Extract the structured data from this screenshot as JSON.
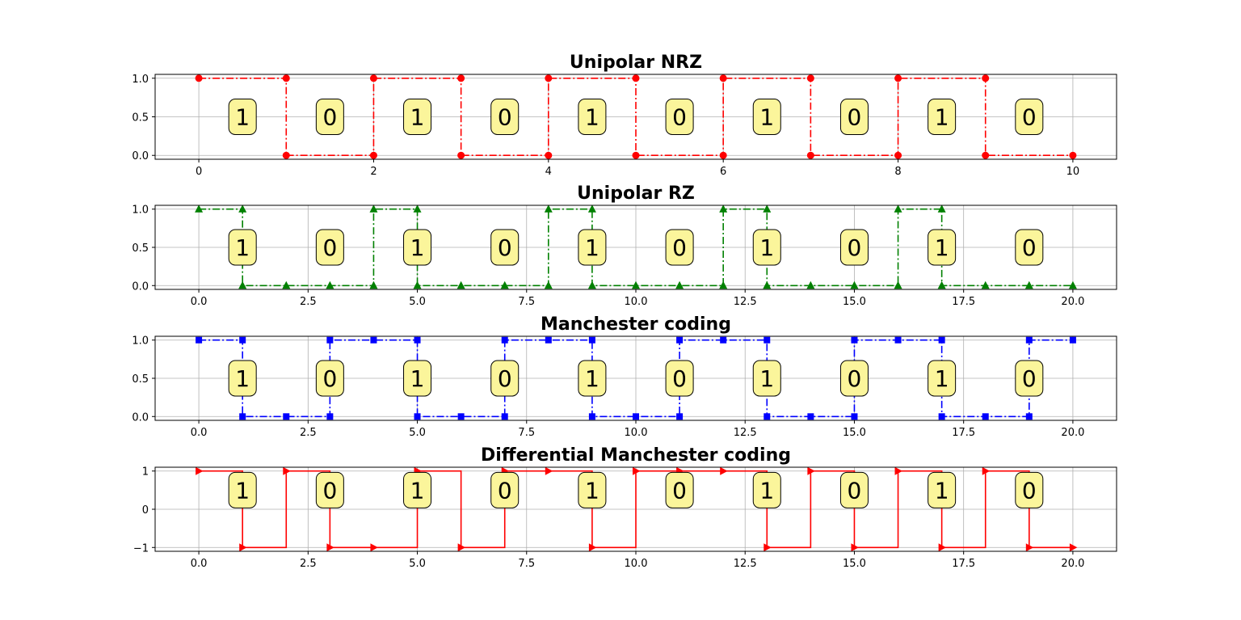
{
  "chart_data": [
    {
      "type": "line",
      "title": "Unipolar NRZ",
      "xlabel": "",
      "ylabel": "",
      "xlim": [
        -0.5,
        10.5
      ],
      "ylim": [
        -0.05,
        1.05
      ],
      "xticks": [
        0,
        2,
        4,
        6,
        8,
        10
      ],
      "xtick_labels": [
        "0",
        "2",
        "4",
        "6",
        "8",
        "10"
      ],
      "yticks": [
        0,
        0.5,
        1
      ],
      "ytick_labels": [
        "0.0",
        "0.5",
        "1.0"
      ],
      "grid": true,
      "series": [
        {
          "color": "#ff0000",
          "marker": "circle",
          "line_style": "dashdot",
          "step": false,
          "x": [
            0,
            1,
            1,
            2,
            2,
            3,
            3,
            4,
            4,
            5,
            5,
            6,
            6,
            7,
            7,
            8,
            8,
            9,
            9,
            10
          ],
          "y": [
            1,
            1,
            0,
            0,
            1,
            1,
            0,
            0,
            1,
            1,
            0,
            0,
            1,
            1,
            0,
            0,
            1,
            1,
            0,
            0
          ]
        }
      ],
      "bit_labels": {
        "x": [
          0.5,
          1.5,
          2.5,
          3.5,
          4.5,
          5.5,
          6.5,
          7.5,
          8.5,
          9.5
        ],
        "y": 0.5,
        "text": [
          "1",
          "0",
          "1",
          "0",
          "1",
          "0",
          "1",
          "0",
          "1",
          "0"
        ]
      }
    },
    {
      "type": "line",
      "title": "Unipolar RZ",
      "xlabel": "",
      "ylabel": "",
      "xlim": [
        -1,
        21
      ],
      "ylim": [
        -0.05,
        1.05
      ],
      "xticks": [
        0,
        2.5,
        5,
        7.5,
        10,
        12.5,
        15,
        17.5,
        20
      ],
      "xtick_labels": [
        "0.0",
        "2.5",
        "5.0",
        "7.5",
        "10.0",
        "12.5",
        "15.0",
        "17.5",
        "20.0"
      ],
      "yticks": [
        0,
        0.5,
        1
      ],
      "ytick_labels": [
        "0.0",
        "0.5",
        "1.0"
      ],
      "grid": true,
      "series": [
        {
          "color": "#008000",
          "marker": "triangle-up",
          "line_style": "dashdot",
          "step": false,
          "x": [
            0,
            1,
            1,
            2,
            3,
            4,
            4,
            5,
            5,
            6,
            7,
            8,
            8,
            9,
            9,
            10,
            11,
            12,
            12,
            13,
            13,
            14,
            15,
            16,
            16,
            17,
            17,
            18,
            19,
            20
          ],
          "y": [
            1,
            1,
            0,
            0,
            0,
            0,
            1,
            1,
            0,
            0,
            0,
            0,
            1,
            1,
            0,
            0,
            0,
            0,
            1,
            1,
            0,
            0,
            0,
            0,
            1,
            1,
            0,
            0,
            0,
            0
          ]
        }
      ],
      "bit_labels": {
        "x": [
          1,
          3,
          5,
          7,
          9,
          11,
          13,
          15,
          17,
          19
        ],
        "y": 0.5,
        "text": [
          "1",
          "0",
          "1",
          "0",
          "1",
          "0",
          "1",
          "0",
          "1",
          "0"
        ]
      }
    },
    {
      "type": "line",
      "title": "Manchester coding",
      "xlabel": "",
      "ylabel": "",
      "xlim": [
        -1,
        21
      ],
      "ylim": [
        -0.05,
        1.05
      ],
      "xticks": [
        0,
        2.5,
        5,
        7.5,
        10,
        12.5,
        15,
        17.5,
        20
      ],
      "xtick_labels": [
        "0.0",
        "2.5",
        "5.0",
        "7.5",
        "10.0",
        "12.5",
        "15.0",
        "17.5",
        "20.0"
      ],
      "yticks": [
        0,
        0.5,
        1
      ],
      "ytick_labels": [
        "0.0",
        "0.5",
        "1.0"
      ],
      "grid": true,
      "series": [
        {
          "color": "#0000ff",
          "marker": "square",
          "line_style": "dashdot",
          "step": false,
          "x": [
            0,
            1,
            1,
            2,
            3,
            3,
            4,
            5,
            5,
            6,
            7,
            7,
            8,
            9,
            9,
            10,
            11,
            11,
            12,
            13,
            13,
            14,
            15,
            15,
            16,
            17,
            17,
            18,
            19,
            19,
            20
          ],
          "y": [
            1,
            1,
            0,
            0,
            0,
            1,
            1,
            1,
            0,
            0,
            0,
            1,
            1,
            1,
            0,
            0,
            0,
            1,
            1,
            1,
            0,
            0,
            0,
            1,
            1,
            1,
            0,
            0,
            0,
            1,
            1
          ]
        }
      ],
      "bit_labels": {
        "x": [
          1,
          3,
          5,
          7,
          9,
          11,
          13,
          15,
          17,
          19
        ],
        "y": 0.5,
        "text": [
          "1",
          "0",
          "1",
          "0",
          "1",
          "0",
          "1",
          "0",
          "1",
          "0"
        ]
      }
    },
    {
      "type": "line",
      "title": "Differential Manchester coding",
      "xlabel": "",
      "ylabel": "",
      "xlim": [
        -1,
        21
      ],
      "ylim": [
        -1.1,
        1.1
      ],
      "xticks": [
        0,
        2.5,
        5,
        7.5,
        10,
        12.5,
        15,
        17.5,
        20
      ],
      "xtick_labels": [
        "0.0",
        "2.5",
        "5.0",
        "7.5",
        "10.0",
        "12.5",
        "15.0",
        "17.5",
        "20.0"
      ],
      "yticks": [
        -1,
        0,
        1
      ],
      "ytick_labels": [
        "−1",
        "0",
        "1"
      ],
      "grid": true,
      "series": [
        {
          "color": "#ff0000",
          "marker": "triangle-right",
          "line_style": "solid",
          "step": "post",
          "x": [
            0,
            1,
            2,
            3,
            4,
            5,
            6,
            7,
            8,
            9,
            10,
            11,
            12,
            13,
            14,
            15,
            16,
            17,
            18,
            19,
            20
          ],
          "y": [
            1,
            -1,
            1,
            -1,
            -1,
            1,
            -1,
            1,
            1,
            -1,
            1,
            1,
            1,
            -1,
            1,
            -1,
            1,
            -1,
            1,
            -1,
            -1
          ]
        }
      ],
      "bit_labels": {
        "x": [
          1,
          3,
          5,
          7,
          9,
          11,
          13,
          15,
          17,
          19
        ],
        "y": 0.5,
        "text": [
          "1",
          "0",
          "1",
          "0",
          "1",
          "0",
          "1",
          "0",
          "1",
          "0"
        ]
      }
    }
  ]
}
